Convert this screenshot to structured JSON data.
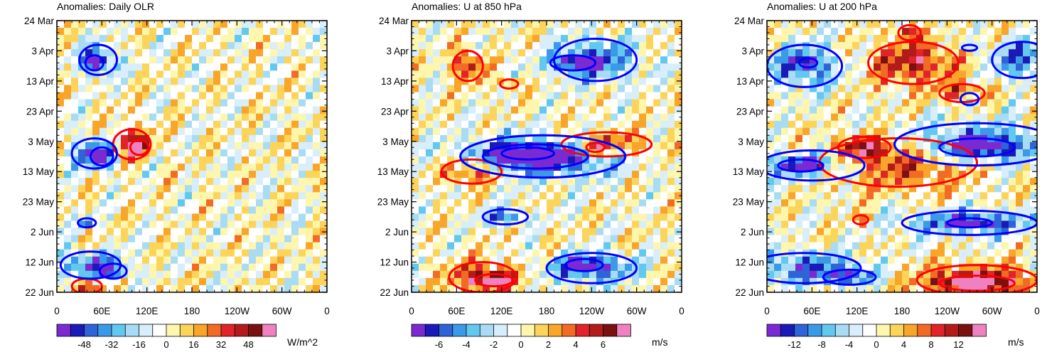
{
  "figure": {
    "palette": [
      "#7b2ad1",
      "#1a1ab8",
      "#2e64d8",
      "#3a9ae8",
      "#62c8f0",
      "#a8dcf4",
      "#d8eefa",
      "#ffffff",
      "#fff6ae",
      "#fcd45a",
      "#f8a52a",
      "#f26b25",
      "#e0242a",
      "#b31b1b",
      "#7a1010",
      "#f081c0"
    ],
    "contour_colors": {
      "positive": "#ff0000",
      "negative": "#0000ff"
    }
  },
  "chart_data": [
    {
      "type": "heatmap",
      "title": "Anomalies: Daily OLR",
      "x_tick_labels": [
        "0",
        "60E",
        "120E",
        "180",
        "120W",
        "60W",
        "0"
      ],
      "y_tick_labels": [
        "24 Mar",
        "3 Apr",
        "13 Apr",
        "23 Apr",
        "3 May",
        "13 May",
        "23 May",
        "2 Jun",
        "12 Jun",
        "22 Jun"
      ],
      "xlim": [
        0,
        360
      ],
      "ylim": [
        "24 Mar",
        "22 Jun"
      ],
      "colorbar": {
        "labels": [
          "-48",
          "-32",
          "-16",
          "0",
          "16",
          "32",
          "48"
        ],
        "units": "W/m^2"
      },
      "red_contours": [
        {
          "lon": 100,
          "day": 41,
          "rx": 25,
          "ry": 5
        },
        {
          "lon": 110,
          "day": 42,
          "rx": 12,
          "ry": 2.5
        },
        {
          "lon": 40,
          "day": 88,
          "rx": 20,
          "ry": 2.5
        }
      ],
      "blue_contours": [
        {
          "lon": 55,
          "day": 13,
          "rx": 25,
          "ry": 5
        },
        {
          "lon": 50,
          "day": 14,
          "rx": 12,
          "ry": 2.5
        },
        {
          "lon": 50,
          "day": 44,
          "rx": 30,
          "ry": 5
        },
        {
          "lon": 60,
          "day": 45,
          "rx": 15,
          "ry": 3
        },
        {
          "lon": 40,
          "day": 67,
          "rx": 12,
          "ry": 1.5
        },
        {
          "lon": 45,
          "day": 81,
          "rx": 40,
          "ry": 4.5
        },
        {
          "lon": 75,
          "day": 83,
          "rx": 18,
          "ry": 2.5
        }
      ]
    },
    {
      "type": "heatmap",
      "title": "Anomalies: U at 850 hPa",
      "x_tick_labels": [
        "0",
        "60E",
        "120E",
        "180",
        "120W",
        "60W",
        "0"
      ],
      "y_tick_labels": [
        "24 Mar",
        "3 Apr",
        "13 Apr",
        "23 Apr",
        "3 May",
        "13 May",
        "23 May",
        "2 Jun",
        "12 Jun",
        "22 Jun"
      ],
      "xlim": [
        0,
        360
      ],
      "ylim": [
        "24 Mar",
        "22 Jun"
      ],
      "colorbar": {
        "labels": [
          "-6",
          "-4",
          "-2",
          "0",
          "2",
          "4",
          "6"
        ],
        "units": "m/s"
      },
      "red_contours": [
        {
          "lon": 75,
          "day": 15,
          "rx": 20,
          "ry": 5
        },
        {
          "lon": 130,
          "day": 21,
          "rx": 12,
          "ry": 1.5
        },
        {
          "lon": 260,
          "day": 41,
          "rx": 60,
          "ry": 4
        },
        {
          "lon": 245,
          "day": 42,
          "rx": 12,
          "ry": 1.5
        },
        {
          "lon": 80,
          "day": 50,
          "rx": 40,
          "ry": 4
        },
        {
          "lon": 95,
          "day": 85,
          "rx": 45,
          "ry": 5
        },
        {
          "lon": 110,
          "day": 86,
          "rx": 25,
          "ry": 2
        }
      ],
      "blue_contours": [
        {
          "lon": 245,
          "day": 13,
          "rx": 55,
          "ry": 7
        },
        {
          "lon": 215,
          "day": 14,
          "rx": 30,
          "ry": 2.5
        },
        {
          "lon": 175,
          "day": 45,
          "rx": 110,
          "ry": 7
        },
        {
          "lon": 165,
          "day": 45,
          "rx": 70,
          "ry": 4
        },
        {
          "lon": 155,
          "day": 44,
          "rx": 35,
          "ry": 2
        },
        {
          "lon": 125,
          "day": 65,
          "rx": 30,
          "ry": 2.5
        },
        {
          "lon": 240,
          "day": 82,
          "rx": 60,
          "ry": 5
        },
        {
          "lon": 230,
          "day": 81,
          "rx": 25,
          "ry": 2
        }
      ]
    },
    {
      "type": "heatmap",
      "title": "Anomalies: U at 200 hPa",
      "x_tick_labels": [
        "0",
        "60E",
        "120E",
        "180",
        "120W",
        "60W",
        "0"
      ],
      "y_tick_labels": [
        "24 Mar",
        "3 Apr",
        "13 Apr",
        "23 Apr",
        "3 May",
        "13 May",
        "23 May",
        "2 Jun",
        "12 Jun",
        "22 Jun"
      ],
      "xlim": [
        0,
        360
      ],
      "ylim": [
        "24 Mar",
        "22 Jun"
      ],
      "colorbar": {
        "labels": [
          "-12",
          "-8",
          "-4",
          "0",
          "4",
          "8",
          "12"
        ],
        "units": "m/s"
      },
      "red_contours": [
        {
          "lon": 195,
          "day": 14,
          "rx": 60,
          "ry": 7
        },
        {
          "lon": 260,
          "day": 24,
          "rx": 30,
          "ry": 3
        },
        {
          "lon": 190,
          "day": 4,
          "rx": 15,
          "ry": 2.5
        },
        {
          "lon": 175,
          "day": 47,
          "rx": 105,
          "ry": 8
        },
        {
          "lon": 130,
          "day": 42,
          "rx": 35,
          "ry": 3.5
        },
        {
          "lon": 125,
          "day": 66,
          "rx": 10,
          "ry": 1.5
        },
        {
          "lon": 280,
          "day": 86,
          "rx": 80,
          "ry": 5
        },
        {
          "lon": 280,
          "day": 87,
          "rx": 50,
          "ry": 2.5
        }
      ],
      "blue_contours": [
        {
          "lon": 50,
          "day": 15,
          "rx": 50,
          "ry": 7
        },
        {
          "lon": 55,
          "day": 14,
          "rx": 12,
          "ry": 1.5
        },
        {
          "lon": 340,
          "day": 13,
          "rx": 40,
          "ry": 6
        },
        {
          "lon": 270,
          "day": 9,
          "rx": 10,
          "ry": 1
        },
        {
          "lon": 270,
          "day": 26,
          "rx": 12,
          "ry": 2
        },
        {
          "lon": 280,
          "day": 41,
          "rx": 110,
          "ry": 7
        },
        {
          "lon": 280,
          "day": 42,
          "rx": 50,
          "ry": 3
        },
        {
          "lon": 60,
          "day": 48,
          "rx": 70,
          "ry": 5
        },
        {
          "lon": 45,
          "day": 48,
          "rx": 30,
          "ry": 2
        },
        {
          "lon": 270,
          "day": 67,
          "rx": 90,
          "ry": 4
        },
        {
          "lon": 270,
          "day": 67,
          "rx": 30,
          "ry": 1.5
        },
        {
          "lon": 50,
          "day": 82,
          "rx": 75,
          "ry": 5
        },
        {
          "lon": 110,
          "day": 85,
          "rx": 35,
          "ry": 2.5
        }
      ]
    }
  ]
}
